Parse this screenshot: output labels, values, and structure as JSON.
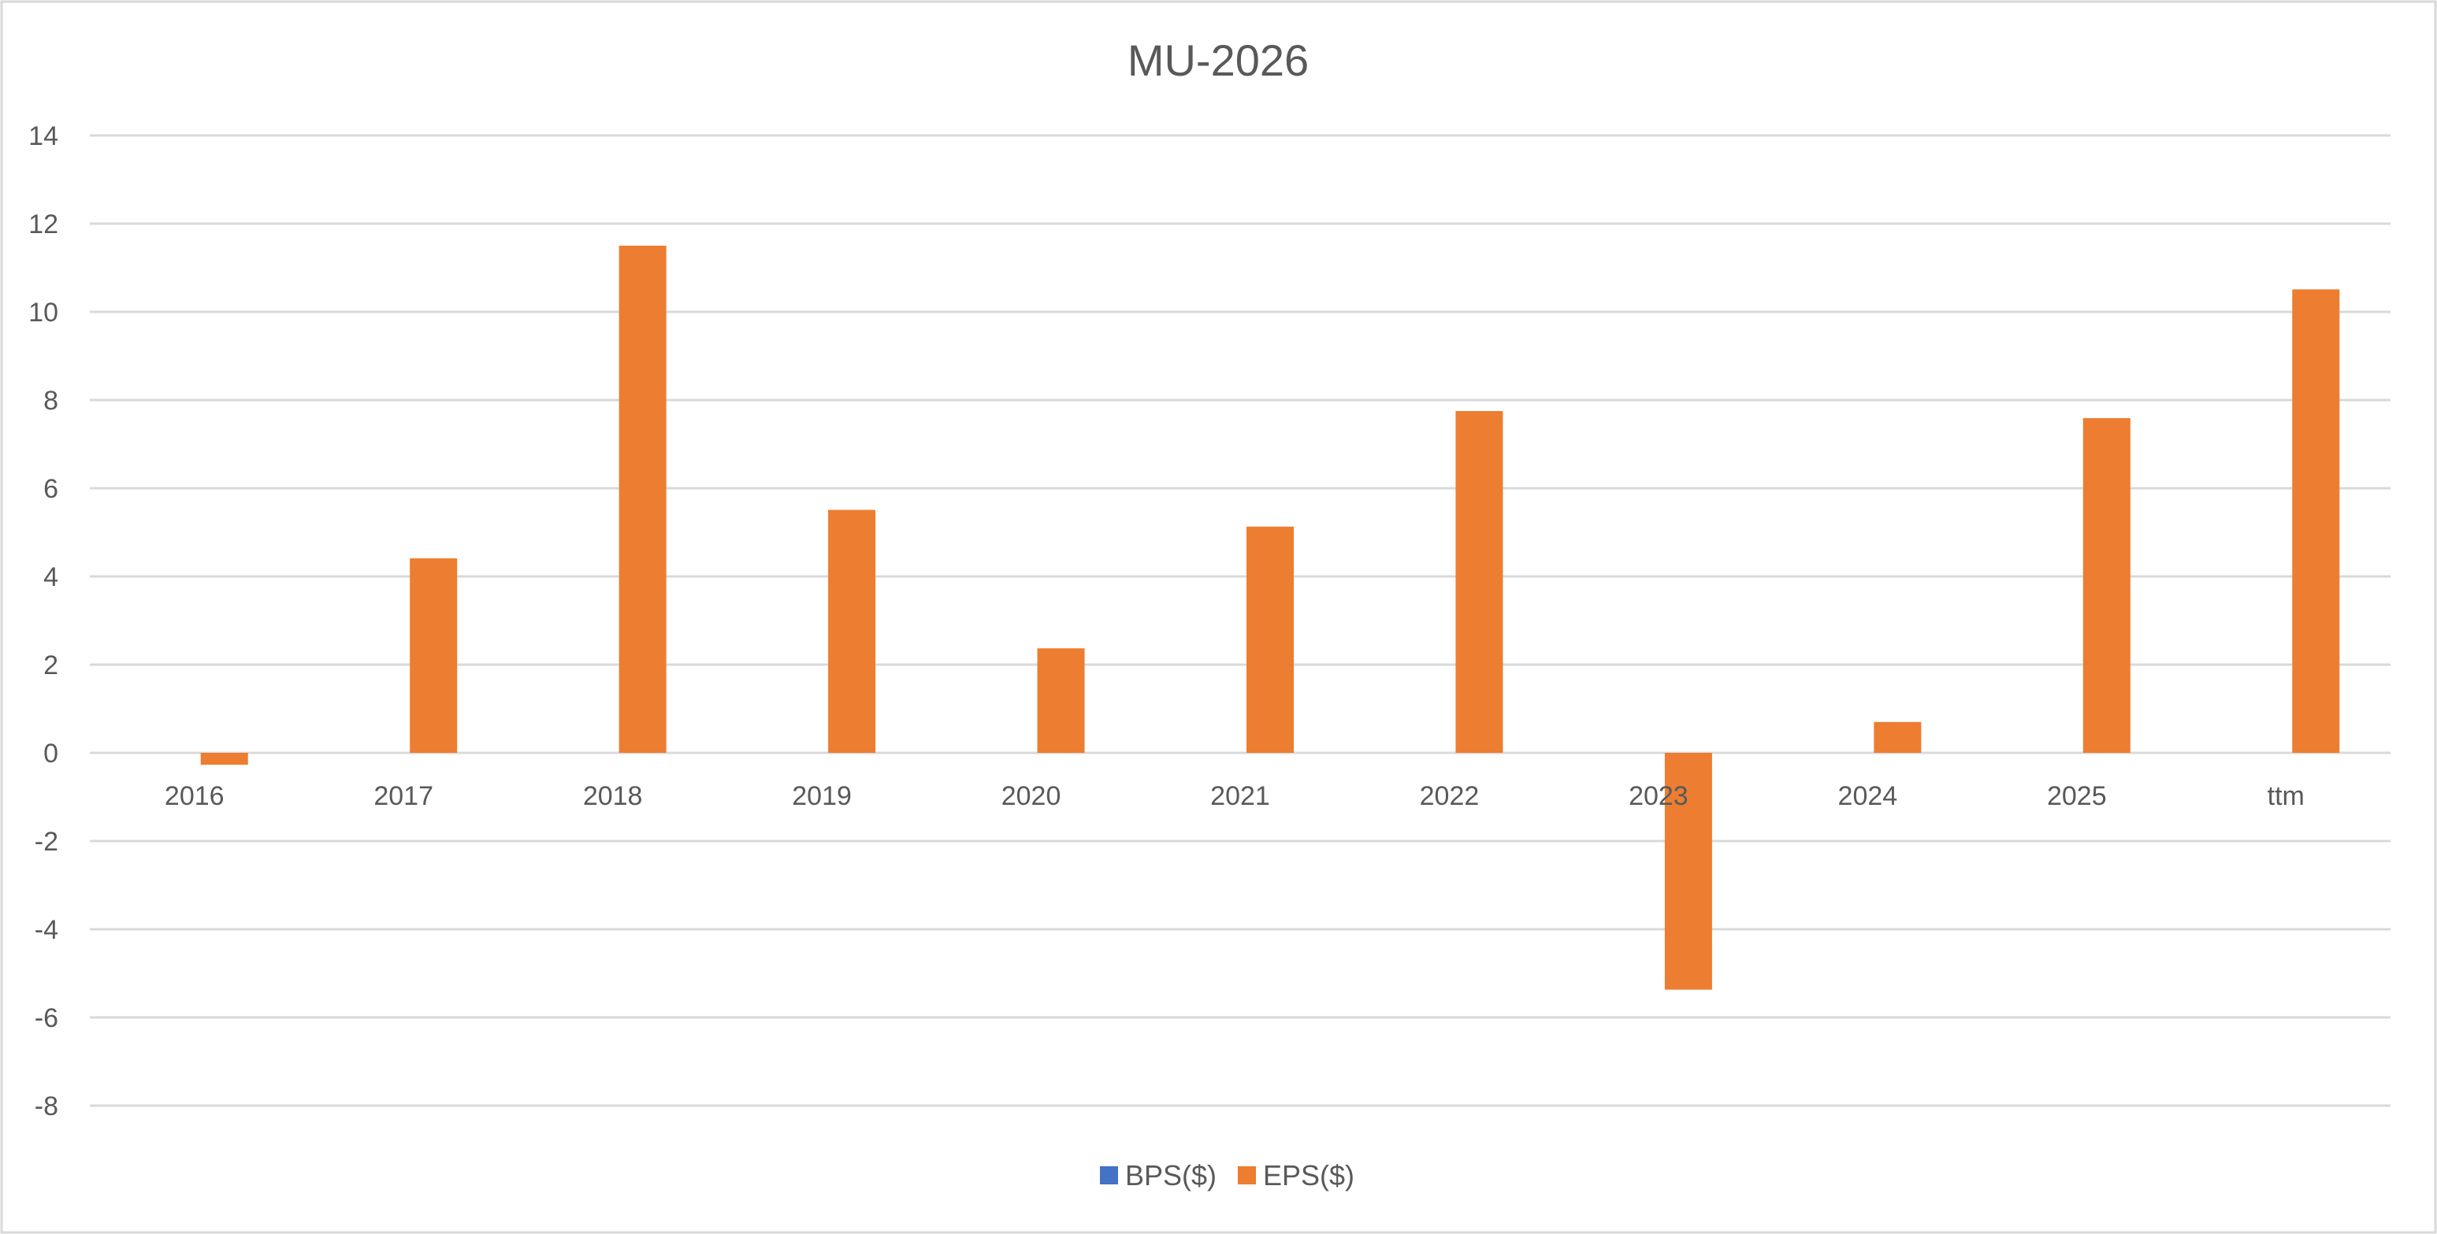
{
  "chart_data": {
    "type": "bar",
    "title": "MU-2026",
    "xlabel": "",
    "ylabel": "",
    "categories": [
      "2016",
      "2017",
      "2018",
      "2019",
      "2020",
      "2021",
      "2022",
      "2023",
      "2024",
      "2025",
      "ttm"
    ],
    "series": [
      {
        "name": "BPS($)",
        "color": "#4472C4",
        "values": [
          null,
          null,
          null,
          null,
          null,
          null,
          null,
          null,
          null,
          null,
          null
        ]
      },
      {
        "name": "EPS($)",
        "color": "#ED7D31",
        "values": [
          -0.27,
          4.41,
          11.5,
          5.51,
          2.37,
          5.13,
          7.75,
          -5.37,
          0.7,
          7.59,
          10.51
        ]
      }
    ],
    "ylim": [
      -8,
      14
    ],
    "yticks": [
      14,
      12,
      10,
      8,
      6,
      4,
      2,
      0,
      -2,
      -4,
      -6,
      -8
    ],
    "grid": true,
    "legend": "bottom"
  }
}
